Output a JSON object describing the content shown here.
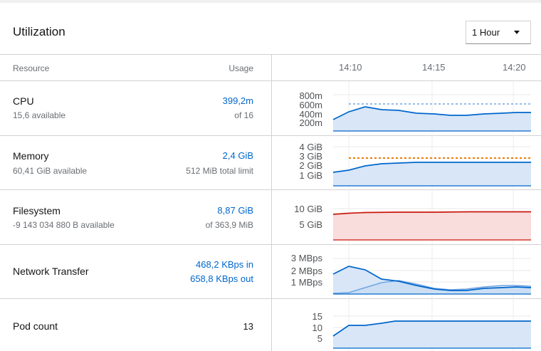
{
  "header": {
    "title": "Utilization",
    "time_range": "1 Hour"
  },
  "columns": {
    "resource": "Resource",
    "usage": "Usage"
  },
  "time_ticks": [
    "14:10",
    "14:15",
    "14:20"
  ],
  "rows": {
    "cpu": {
      "name": "CPU",
      "available": "15,6 available",
      "usage": "399,2m",
      "limit": "of 16",
      "ticks": [
        "800m",
        "600m",
        "400m",
        "200m"
      ]
    },
    "memory": {
      "name": "Memory",
      "available": "60,41 GiB available",
      "usage": "2,4 GiB",
      "limit": "512 MiB total limit",
      "ticks": [
        "4 GiB",
        "3 GiB",
        "2 GiB",
        "1 GiB"
      ]
    },
    "filesystem": {
      "name": "Filesystem",
      "available": "-9 143 034 880 B available",
      "usage": "8,87 GiB",
      "limit": "of 363,9 MiB",
      "ticks": [
        "10 GiB",
        "5 GiB"
      ]
    },
    "network": {
      "name": "Network Transfer",
      "usage_in": "468,2 KBps in",
      "usage_out": "658,8 KBps out",
      "ticks": [
        "3 MBps",
        "2 MBps",
        "1 MBps"
      ]
    },
    "pods": {
      "name": "Pod count",
      "usage": "13",
      "ticks": [
        "15",
        "10",
        "5"
      ]
    }
  },
  "colors": {
    "usage_blue": "#06c",
    "area_blue": "#d8e6f7",
    "limit_orange": "#ec7a08",
    "alert_red": "#c9190b",
    "area_red": "#f9dcdc",
    "link": "#0066cc"
  }
}
